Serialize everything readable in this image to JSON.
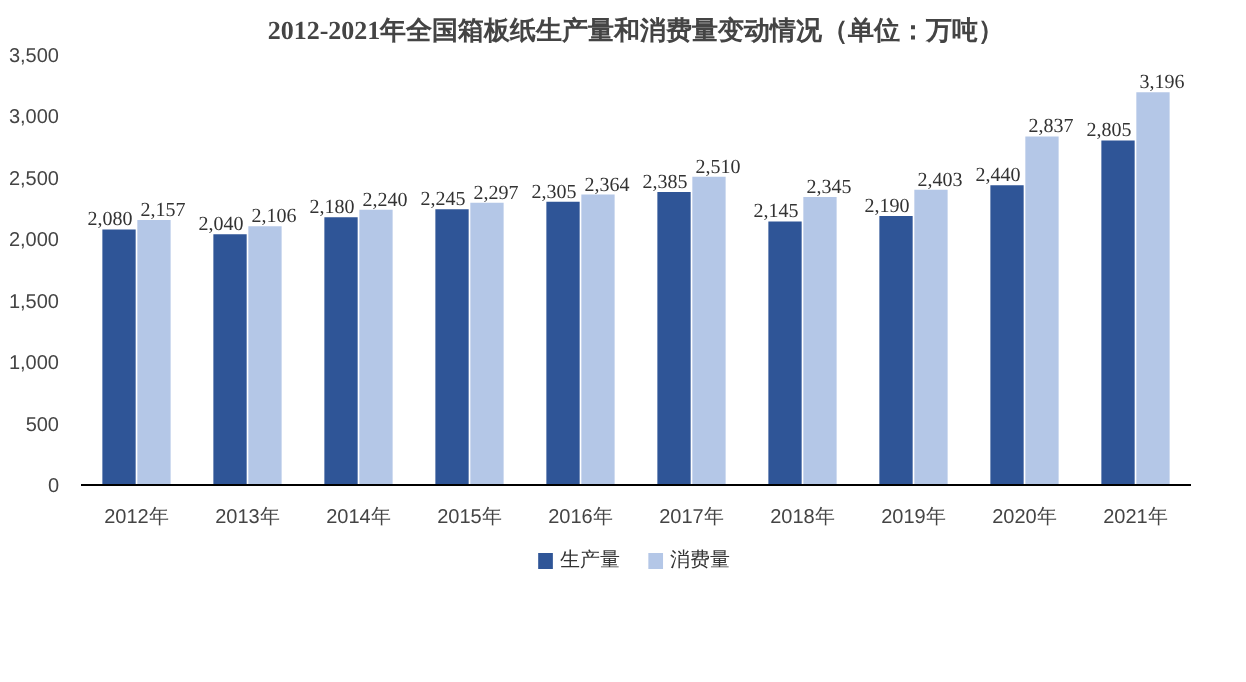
{
  "chart_data": {
    "type": "bar",
    "title": "2012-2021年全国箱板纸生产量和消费量变动情况（单位：万吨）",
    "categories": [
      "2012年",
      "2013年",
      "2014年",
      "2015年",
      "2016年",
      "2017年",
      "2018年",
      "2019年",
      "2020年",
      "2021年"
    ],
    "series": [
      {
        "name": "生产量",
        "color": "#2f5597",
        "values": [
          2080,
          2040,
          2180,
          2245,
          2305,
          2385,
          2145,
          2190,
          2440,
          2805
        ],
        "value_labels": [
          "2,080",
          "2,040",
          "2,180",
          "2,245",
          "2,305",
          "2,385",
          "2,145",
          "2,190",
          "2,440",
          "2,805"
        ]
      },
      {
        "name": "消费量",
        "color": "#b4c7e7",
        "values": [
          2157,
          2106,
          2240,
          2297,
          2364,
          2510,
          2345,
          2403,
          2837,
          3196
        ],
        "value_labels": [
          "2,157",
          "2,106",
          "2,240",
          "2,297",
          "2,364",
          "2,510",
          "2,345",
          "2,403",
          "2,837",
          "3,196"
        ]
      }
    ],
    "ylim": [
      0,
      3500
    ],
    "yticks": [
      0,
      {
        "value": 500,
        "label": "500"
      },
      {
        "value": 1000,
        "label": "1,000"
      },
      {
        "value": 1500,
        "label": "1,500"
      },
      {
        "value": 2000,
        "label": "2,000"
      },
      {
        "value": 2500,
        "label": "2,500"
      },
      {
        "value": 3000,
        "label": "3,000"
      },
      {
        "value": 3500,
        "label": "3,500"
      }
    ],
    "legend": "bottom",
    "grid": false
  }
}
